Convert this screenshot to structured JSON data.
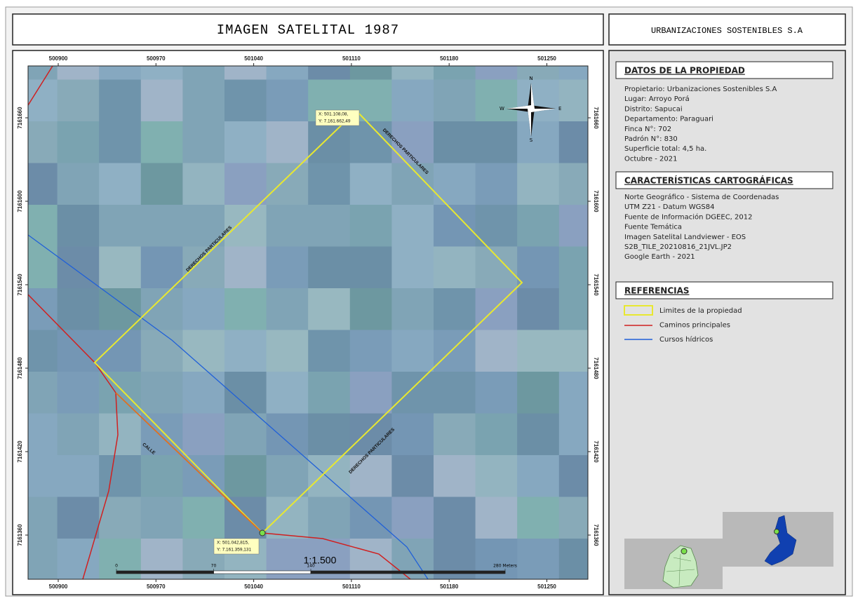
{
  "header": {
    "title": "IMAGEN SATELITAL 1987",
    "company": "URBANIZACIONES SOSTENIBLES S.A"
  },
  "map": {
    "x_ticks": [
      500900,
      500970,
      501040,
      501110,
      501180,
      501250
    ],
    "y_ticks": [
      7161660,
      7161600,
      7161540,
      7161480,
      7161420,
      7161360
    ],
    "labels": [
      "DERECHOS PARTICULARES",
      "DERECHOS PARTICULARES",
      "DERECHOS PARTICULARES",
      "CALLE"
    ],
    "callouts": [
      {
        "x": "X: 501.108,08,",
        "y": "Y: 7.161.662,49"
      },
      {
        "x": "X: 501.042,815,",
        "y": "Y: 7.161.359,131"
      }
    ],
    "north_arrow": {
      "n": "N",
      "s": "S",
      "e": "E",
      "w": "W"
    },
    "scale": {
      "ratio": "1:1.500",
      "ticks": [
        0,
        70,
        140,
        {
          "value": 280,
          "label": "280 Meters"
        }
      ]
    }
  },
  "panel": {
    "property": {
      "heading": "DATOS DE LA PROPIEDAD",
      "lines": [
        "Propietario: Urbanizaciones Sostenibles S.A",
        "Lugar: Arroyo Porá",
        "Distrito: Sapucai",
        "Departamento: Paraguari",
        "Finca N°: 702",
        "Padrón N°: 830",
        "Superficie total: 4,5 ha.",
        "Octubre - 2021"
      ]
    },
    "cartography": {
      "heading": "CARACTERÍSTICAS CARTOGRÁFICAS",
      "lines": [
        "Norte Geográfico - Sistema de Coordenadas",
        "UTM Z21 - Datum WGS84",
        "Fuente de Información DGEEC, 2012",
        "Fuente Temática",
        "Imagen Satelital Landviewer - EOS",
        "S2B_TILE_20210816_21JVL.JP2",
        "Google Earth - 2021"
      ]
    },
    "references": {
      "heading": "REFERENCIAS",
      "items": [
        "Limites de la propiedad",
        "Caminos principales",
        "Cursos hídricos"
      ]
    }
  }
}
